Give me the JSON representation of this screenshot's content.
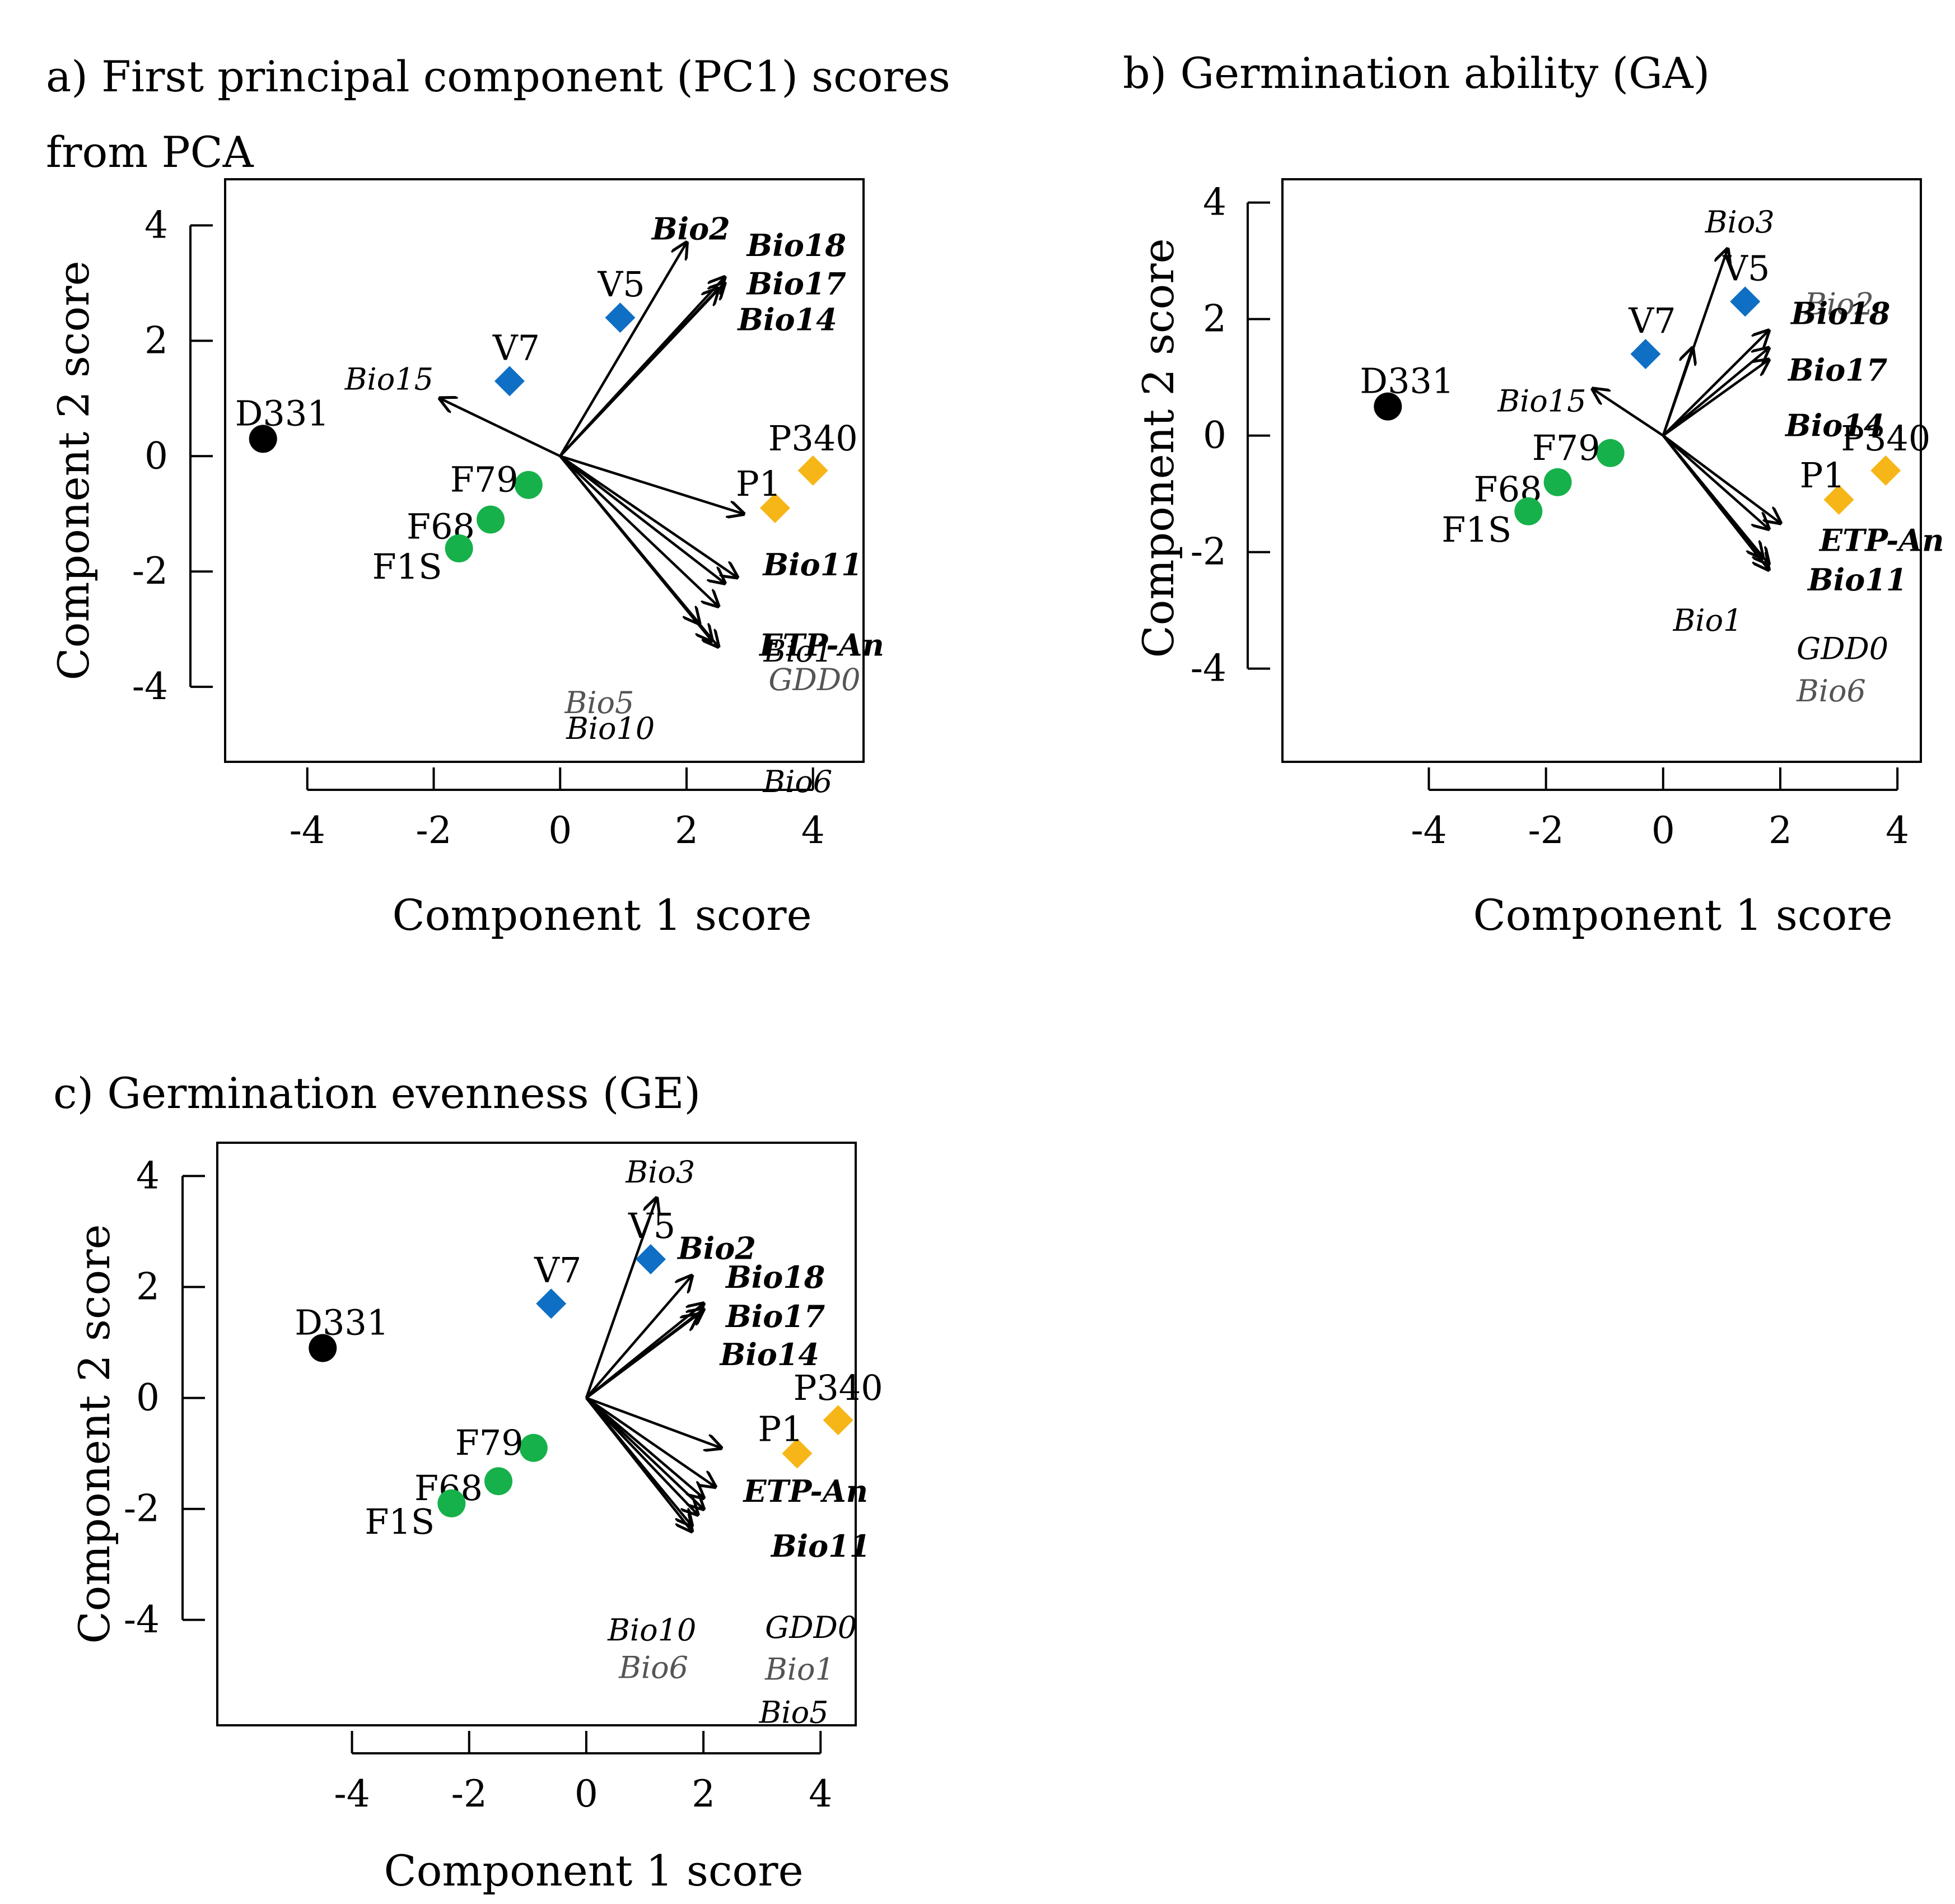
{
  "colors": {
    "origin_group": "#000000",
    "blue_group": "#0e6fc4",
    "green_group": "#16b14a",
    "yellow_group": "#f7b617",
    "vectors": "#000000"
  },
  "chart_data": [
    {
      "type": "scatter",
      "title_lines": [
        "a)  First  principal  component  (PC1)  scores",
        "from PCA"
      ],
      "xlabel": "Component 1 score",
      "ylabel": "Component 2 score",
      "xlim": [
        -5.3,
        4.8
      ],
      "ylim": [
        -5.3,
        4.8
      ],
      "xticks": [
        "-4",
        "-2",
        "0",
        "2",
        "4"
      ],
      "yticks": [
        "4",
        "2",
        "0",
        "-2",
        "-4"
      ],
      "points": [
        {
          "label": "D331",
          "x": -4.7,
          "y": 0.3,
          "shape": "circle",
          "group": "origin_group"
        },
        {
          "label": "V7",
          "x": -0.8,
          "y": 1.3,
          "shape": "diamond",
          "group": "blue_group"
        },
        {
          "label": "V5",
          "x": 0.95,
          "y": 2.4,
          "shape": "diamond",
          "group": "blue_group"
        },
        {
          "label": "F79",
          "x": -0.5,
          "y": -0.5,
          "shape": "circle",
          "group": "green_group"
        },
        {
          "label": "F68",
          "x": -1.1,
          "y": -1.1,
          "shape": "circle",
          "group": "green_group"
        },
        {
          "label": "F1S",
          "x": -1.6,
          "y": -1.6,
          "shape": "circle",
          "group": "green_group"
        },
        {
          "label": "P340",
          "x": 4.0,
          "y": -0.25,
          "shape": "diamond",
          "group": "yellow_group"
        },
        {
          "label": "P1",
          "x": 3.4,
          "y": -0.9,
          "shape": "diamond",
          "group": "yellow_group"
        }
      ],
      "vectors": [
        {
          "label": "Bio2",
          "x": 2.0,
          "y": 3.7,
          "style": "bold"
        },
        {
          "label": "Bio18",
          "x": 2.6,
          "y": 3.1,
          "style": "bold"
        },
        {
          "label": "Bio17",
          "x": 2.6,
          "y": 3.0,
          "style": "bold"
        },
        {
          "label": "Bio14",
          "x": 2.5,
          "y": 2.9,
          "style": "bold"
        },
        {
          "label": "Bio15",
          "x": -1.9,
          "y": 1.0,
          "style": "normal"
        },
        {
          "label": "Bio11",
          "x": 2.9,
          "y": -1.0,
          "style": "bold"
        },
        {
          "label": "ETP-An",
          "x": 2.8,
          "y": -2.1,
          "style": "bold"
        },
        {
          "label": "Bio1",
          "x": 2.6,
          "y": -2.2,
          "style": "normal"
        },
        {
          "label": "GDD0",
          "x": 2.5,
          "y": -2.6,
          "style": "faint"
        },
        {
          "label": "Bio5",
          "x": 2.2,
          "y": -2.9,
          "style": "faint"
        },
        {
          "label": "Bio10",
          "x": 2.4,
          "y": -3.2,
          "style": "normal"
        },
        {
          "label": "Bio6",
          "x": 2.5,
          "y": -3.3,
          "style": "normal"
        }
      ]
    },
    {
      "type": "scatter",
      "title_lines": [
        "b) Germination ability (GA)"
      ],
      "xlabel": "Component 1 score",
      "ylabel": "Component 2 score",
      "xlim": [
        -6.5,
        4.4
      ],
      "ylim": [
        -5.6,
        4.4
      ],
      "xticks": [
        "-4",
        "-2",
        "0",
        "2",
        "4"
      ],
      "yticks": [
        "4",
        "2",
        "0",
        "-2",
        "-4"
      ],
      "points": [
        {
          "label": "D331",
          "x": -4.7,
          "y": 0.5,
          "shape": "circle",
          "group": "origin_group"
        },
        {
          "label": "V7",
          "x": -0.3,
          "y": 1.4,
          "shape": "diamond",
          "group": "blue_group"
        },
        {
          "label": "V5",
          "x": 1.4,
          "y": 2.3,
          "shape": "diamond",
          "group": "blue_group"
        },
        {
          "label": "F79",
          "x": -0.9,
          "y": -0.3,
          "shape": "circle",
          "group": "green_group"
        },
        {
          "label": "F68",
          "x": -1.8,
          "y": -0.8,
          "shape": "circle",
          "group": "green_group"
        },
        {
          "label": "F1S",
          "x": -2.3,
          "y": -1.3,
          "shape": "circle",
          "group": "green_group"
        },
        {
          "label": "P340",
          "x": 3.8,
          "y": -0.6,
          "shape": "diamond",
          "group": "yellow_group"
        },
        {
          "label": "P1",
          "x": 3.0,
          "y": -1.1,
          "shape": "diamond",
          "group": "yellow_group"
        }
      ],
      "vectors": [
        {
          "label": "Bio3",
          "x": 1.1,
          "y": 3.2,
          "style": "normal"
        },
        {
          "label": "Bio2",
          "x": 0.5,
          "y": 1.5,
          "style": "faint"
        },
        {
          "label": "Bio18",
          "x": 1.8,
          "y": 1.8,
          "style": "bold"
        },
        {
          "label": "Bio17",
          "x": 1.8,
          "y": 1.5,
          "style": "bold"
        },
        {
          "label": "Bio14",
          "x": 1.8,
          "y": 1.3,
          "style": "bold"
        },
        {
          "label": "Bio15",
          "x": -1.2,
          "y": 0.8,
          "style": "normal"
        },
        {
          "label": "ETP-An",
          "x": 2.0,
          "y": -1.5,
          "style": "bold"
        },
        {
          "label": "Bio11",
          "x": 1.8,
          "y": -1.6,
          "style": "bold"
        },
        {
          "label": "Bio1",
          "x": 1.7,
          "y": -2.1,
          "style": "normal"
        },
        {
          "label": "GDD0",
          "x": 1.8,
          "y": -2.2,
          "style": "normal"
        },
        {
          "label": "Bio6",
          "x": 1.8,
          "y": -2.3,
          "style": "faint"
        }
      ]
    },
    {
      "type": "scatter",
      "title_lines": [
        "c) Germination evenness (GE)"
      ],
      "xlabel": "Component 1 score",
      "ylabel": "Component 2 score",
      "xlim": [
        -6.3,
        4.6
      ],
      "ylim": [
        -5.9,
        4.6
      ],
      "xticks": [
        "-4",
        "-2",
        "0",
        "2",
        "4"
      ],
      "yticks": [
        "4",
        "2",
        "0",
        "-2",
        "-4"
      ],
      "points": [
        {
          "label": "D331",
          "x": -4.5,
          "y": 0.9,
          "shape": "circle",
          "group": "origin_group"
        },
        {
          "label": "V7",
          "x": -0.6,
          "y": 1.7,
          "shape": "diamond",
          "group": "blue_group"
        },
        {
          "label": "V5",
          "x": 1.1,
          "y": 2.5,
          "shape": "diamond",
          "group": "blue_group"
        },
        {
          "label": "F79",
          "x": -0.9,
          "y": -0.9,
          "shape": "circle",
          "group": "green_group"
        },
        {
          "label": "F68",
          "x": -1.5,
          "y": -1.5,
          "shape": "circle",
          "group": "green_group"
        },
        {
          "label": "F1S",
          "x": -2.3,
          "y": -1.9,
          "shape": "circle",
          "group": "green_group"
        },
        {
          "label": "P340",
          "x": 4.3,
          "y": -0.4,
          "shape": "diamond",
          "group": "yellow_group"
        },
        {
          "label": "P1",
          "x": 3.6,
          "y": -1.0,
          "shape": "diamond",
          "group": "yellow_group"
        }
      ],
      "vectors": [
        {
          "label": "Bio3",
          "x": 1.2,
          "y": 3.6,
          "style": "normal"
        },
        {
          "label": "Bio2",
          "x": 1.8,
          "y": 2.2,
          "style": "bold"
        },
        {
          "label": "Bio18",
          "x": 2.0,
          "y": 1.7,
          "style": "bold"
        },
        {
          "label": "Bio17",
          "x": 2.0,
          "y": 1.6,
          "style": "bold"
        },
        {
          "label": "Bio14",
          "x": 1.9,
          "y": 1.5,
          "style": "bold"
        },
        {
          "label": "ETP-An",
          "x": 2.3,
          "y": -0.9,
          "style": "bold"
        },
        {
          "label": "Bio11",
          "x": 2.2,
          "y": -1.6,
          "style": "bold"
        },
        {
          "label": "GDD0",
          "x": 2.0,
          "y": -1.8,
          "style": "normal"
        },
        {
          "label": "Bio1",
          "x": 2.0,
          "y": -2.0,
          "style": "faint"
        },
        {
          "label": "Bio5",
          "x": 1.9,
          "y": -2.1,
          "style": "normal"
        },
        {
          "label": "Bio10",
          "x": 1.8,
          "y": -2.3,
          "style": "normal"
        },
        {
          "label": "Bio6",
          "x": 1.8,
          "y": -2.4,
          "style": "faint"
        }
      ]
    }
  ]
}
